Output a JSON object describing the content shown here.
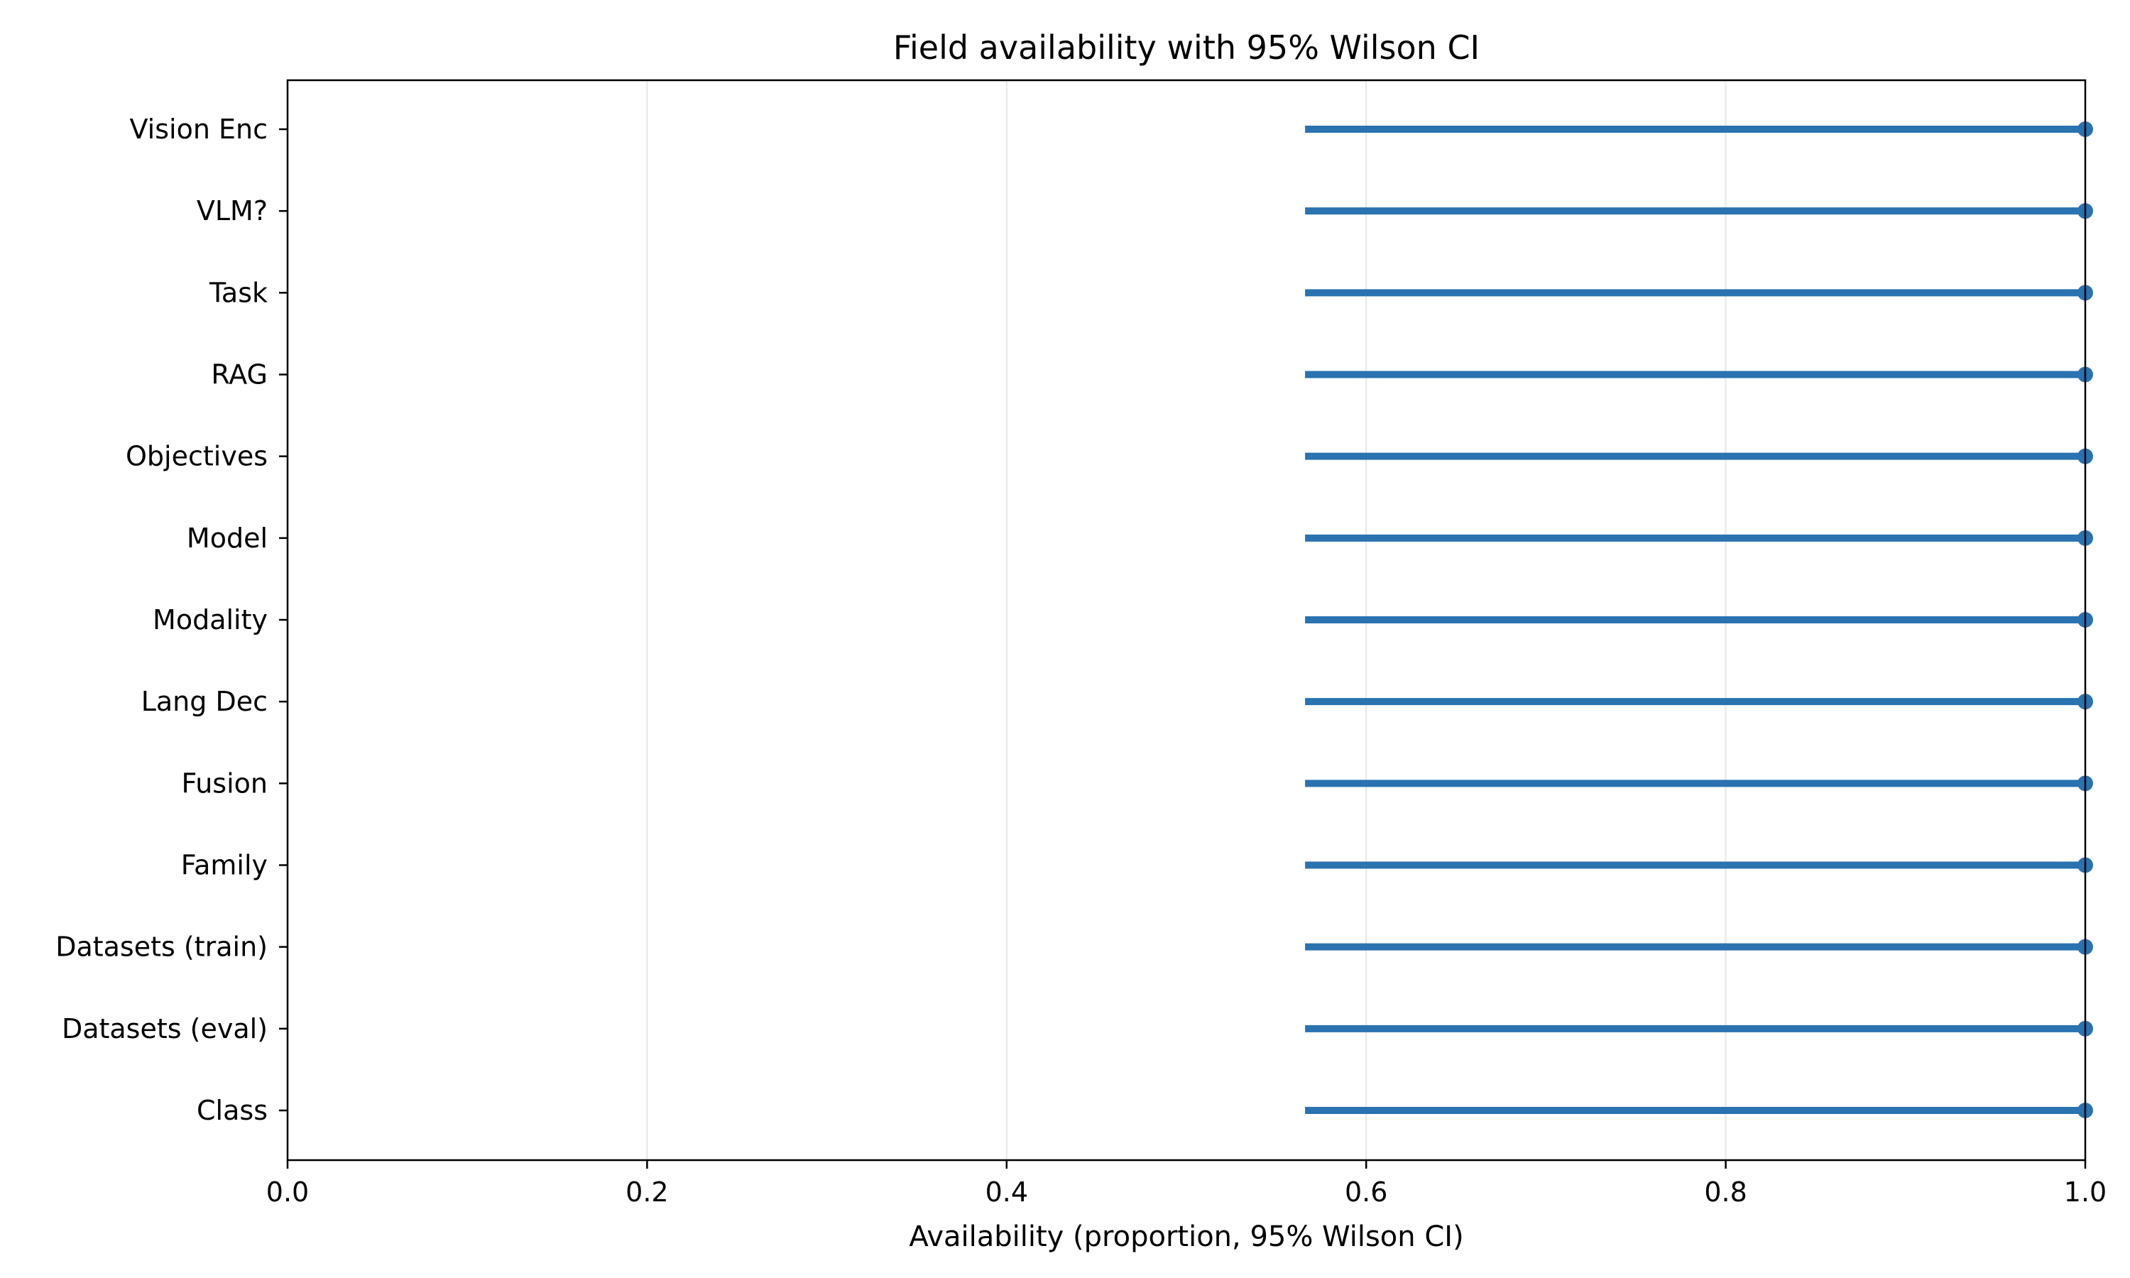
{
  "chart_data": {
    "type": "dot-whisker",
    "title": "Field availability with 95% Wilson CI",
    "xlabel": "Availability (proportion, 95% Wilson CI)",
    "ylabel": "",
    "xlim": [
      0.0,
      1.0
    ],
    "xticks": [
      "0.0",
      "0.2",
      "0.4",
      "0.6",
      "0.8",
      "1.0"
    ],
    "xtick_values": [
      0.0,
      0.2,
      0.4,
      0.6,
      0.8,
      1.0
    ],
    "grid": "vertical",
    "legend": "none",
    "color": "#2a72b0",
    "categories": [
      "Vision Enc",
      "VLM?",
      "Task",
      "RAG",
      "Objectives",
      "Model",
      "Modality",
      "Lang Dec",
      "Fusion",
      "Family",
      "Datasets (train)",
      "Datasets (eval)",
      "Class"
    ],
    "values": [
      1.0,
      1.0,
      1.0,
      1.0,
      1.0,
      1.0,
      1.0,
      1.0,
      1.0,
      1.0,
      1.0,
      1.0,
      1.0
    ],
    "ci_lower": [
      0.566,
      0.566,
      0.566,
      0.566,
      0.566,
      0.566,
      0.566,
      0.566,
      0.566,
      0.566,
      0.566,
      0.566,
      0.566
    ],
    "ci_upper": [
      1.0,
      1.0,
      1.0,
      1.0,
      1.0,
      1.0,
      1.0,
      1.0,
      1.0,
      1.0,
      1.0,
      1.0,
      1.0
    ]
  }
}
